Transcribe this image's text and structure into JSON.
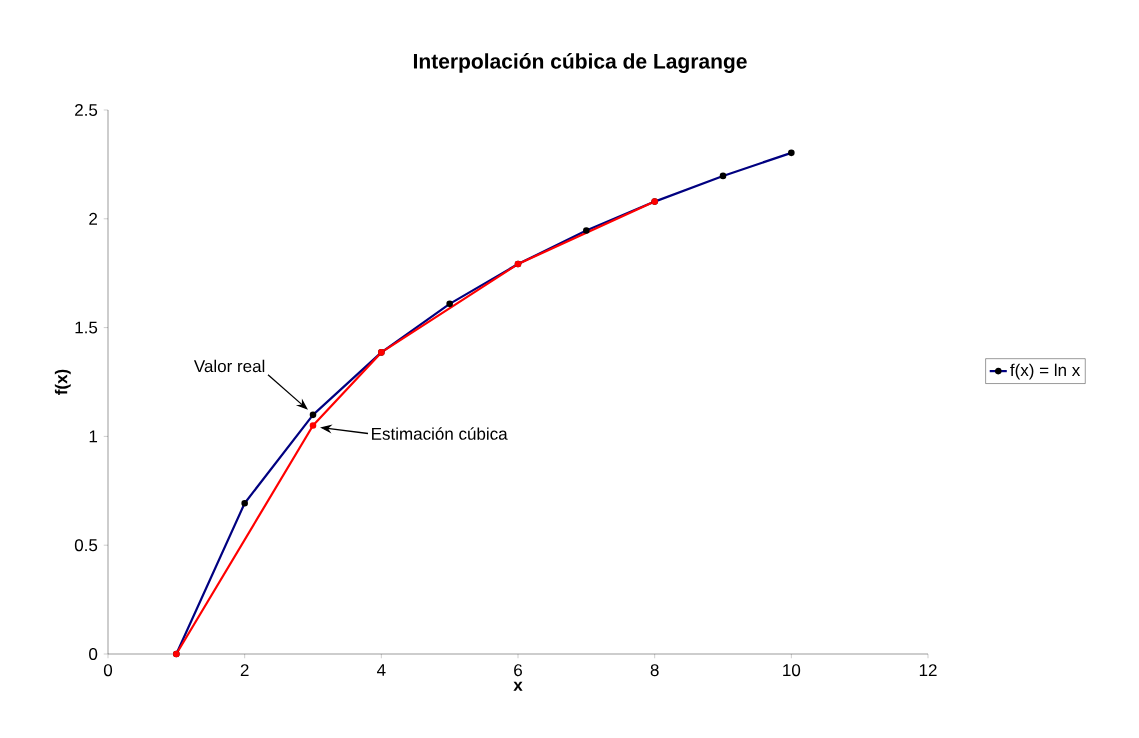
{
  "chart_data": {
    "type": "line",
    "title": "Interpolación cúbica de Lagrange",
    "xlabel": "x",
    "ylabel": "f(x)",
    "series": [
      {
        "name": "f(x) = ln x",
        "color": "#000080",
        "x": [
          1,
          2,
          3,
          4,
          5,
          6,
          7,
          8,
          9,
          10
        ],
        "values": [
          0,
          0.693,
          1.099,
          1.386,
          1.609,
          1.792,
          1.946,
          2.079,
          2.197,
          2.303
        ]
      },
      {
        "color": "#ff0000",
        "x": [
          1,
          3,
          4,
          6,
          8
        ],
        "values": [
          0,
          1.05,
          1.386,
          1.792,
          2.079
        ]
      }
    ],
    "xlim": [
      0,
      12
    ],
    "xticks": [
      0,
      2,
      4,
      6,
      8,
      10,
      12
    ],
    "ylim": [
      0,
      2.5
    ],
    "yticks": [
      0,
      0.5,
      1,
      1.5,
      2,
      2.5
    ],
    "grid": false,
    "legend": "right",
    "marker": "circle",
    "annotations": [
      "Valor real",
      "Estimación cúbica"
    ]
  }
}
